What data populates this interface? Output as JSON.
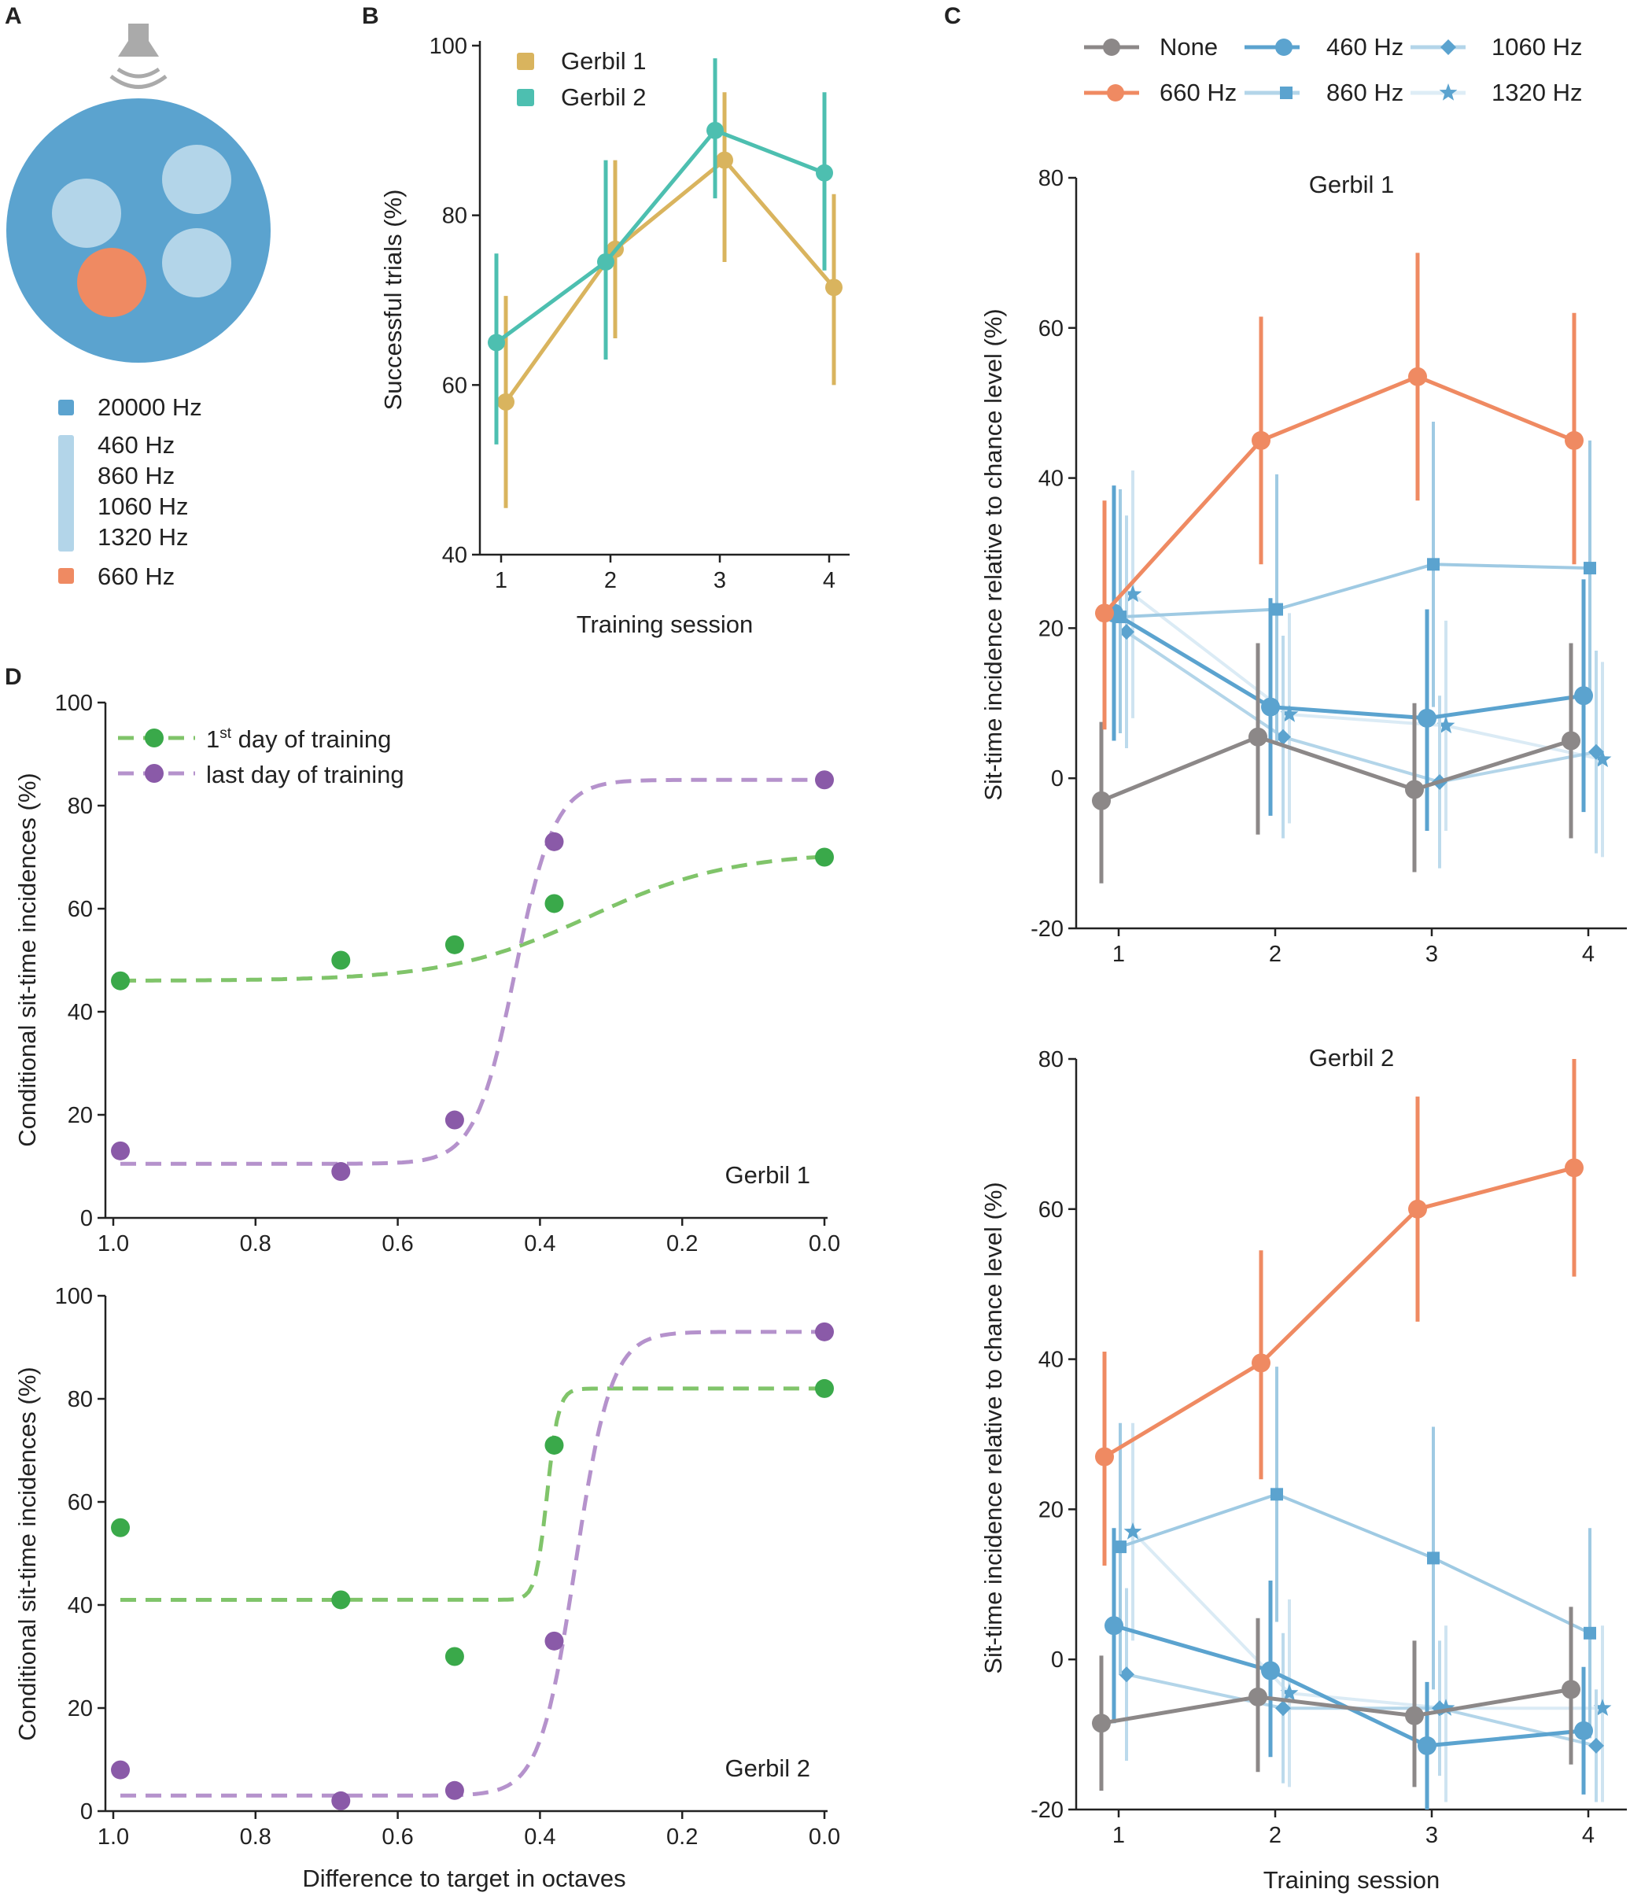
{
  "colors": {
    "blue_dark": "#5ba3cf",
    "blue_light": "#b3d5e9",
    "orange": "#ef8a62",
    "gray": "#8c8888",
    "gold": "#d9b45e",
    "teal": "#4dbfb0",
    "green": "#3aa94a",
    "green_line": "#80c46a",
    "purple": "#8a5aa8",
    "purple_line": "#b592cc",
    "speaker": "#aaaaaa"
  },
  "panel_a": {
    "letter": "A",
    "legend": [
      {
        "label": "20000 Hz",
        "color": "#5ba3cf"
      },
      {
        "labels": [
          "460 Hz",
          "860 Hz",
          "1060 Hz",
          "1320 Hz"
        ],
        "color": "#b3d5e9"
      },
      {
        "label": "660 Hz",
        "color": "#ef8a62"
      }
    ]
  },
  "chart_data": [
    {
      "id": "B",
      "letter": "B",
      "type": "line",
      "xlabel": "Training session",
      "ylabel": "Successful trials (%)",
      "x": [
        1,
        2,
        3,
        4
      ],
      "xticks": [
        "1",
        "2",
        "3",
        "4"
      ],
      "ylim": [
        40,
        100
      ],
      "yticks": [
        40,
        60,
        80,
        100
      ],
      "series": [
        {
          "name": "Gerbil 1",
          "color": "#d9b45e",
          "values": [
            58,
            76,
            86.5,
            71.5
          ],
          "err": [
            [
              45.5,
              70.5
            ],
            [
              65.5,
              86.5
            ],
            [
              74.5,
              94.5
            ],
            [
              60,
              82.5
            ]
          ]
        },
        {
          "name": "Gerbil 2",
          "color": "#4dbfb0",
          "values": [
            65,
            74.5,
            90,
            85
          ],
          "err": [
            [
              53,
              75.5
            ],
            [
              63,
              86.5
            ],
            [
              82,
              98.5
            ],
            [
              73.5,
              94.5
            ]
          ]
        }
      ]
    },
    {
      "id": "C1",
      "letter": "C",
      "type": "line",
      "title": "Gerbil 1",
      "xlabel": "",
      "ylabel": "Sit-time incidence relative to chance level (%)",
      "x": [
        1,
        2,
        3,
        4
      ],
      "xticks": [
        "1",
        "2",
        "3",
        "4"
      ],
      "ylim": [
        -20,
        80
      ],
      "yticks": [
        -20,
        0,
        20,
        40,
        60,
        80
      ],
      "yticklabels": [
        "-20",
        "0",
        "20",
        "40",
        "60",
        "80"
      ],
      "series": [
        {
          "name": "None",
          "key": "none",
          "values": [
            -3,
            5.5,
            -1.5,
            5
          ],
          "err": [
            [
              -14,
              7.5
            ],
            [
              -7.5,
              18
            ],
            [
              -12.5,
              10
            ],
            [
              -8,
              18
            ]
          ]
        },
        {
          "name": "660 Hz",
          "key": "660",
          "values": [
            22,
            45,
            53.5,
            45
          ],
          "err": [
            [
              6.5,
              37
            ],
            [
              28.5,
              61.5
            ],
            [
              37,
              70
            ],
            [
              28.5,
              62
            ]
          ]
        },
        {
          "name": "460 Hz",
          "key": "460",
          "values": [
            22,
            9.5,
            8,
            11
          ],
          "err": [
            [
              5,
              39
            ],
            [
              -5,
              24
            ],
            [
              -7,
              22.5
            ],
            [
              -4.5,
              26.5
            ]
          ]
        },
        {
          "name": "860 Hz",
          "key": "860",
          "values": [
            21.5,
            22.5,
            28.5,
            28
          ],
          "err": [
            [
              6,
              38.5
            ],
            [
              4.5,
              40.5
            ],
            [
              9.5,
              47.5
            ],
            [
              10.5,
              45
            ]
          ]
        },
        {
          "name": "1060 Hz",
          "key": "1060",
          "values": [
            19.5,
            5.5,
            -0.5,
            3.5
          ],
          "err": [
            [
              4,
              35
            ],
            [
              -8,
              19
            ],
            [
              -12,
              11
            ],
            [
              -10,
              17
            ]
          ]
        },
        {
          "name": "1320 Hz",
          "key": "1320",
          "values": [
            24.5,
            8.5,
            7,
            2.5
          ],
          "err": [
            [
              8,
              41
            ],
            [
              -6,
              22
            ],
            [
              -7,
              21
            ],
            [
              -10.5,
              15.5
            ]
          ]
        }
      ]
    },
    {
      "id": "C2",
      "letter": "",
      "type": "line",
      "title": "Gerbil 2",
      "xlabel": "Training session",
      "ylabel": "Sit-time incidence relative to chance level (%)",
      "x": [
        1,
        2,
        3,
        4
      ],
      "xticks": [
        "1",
        "2",
        "3",
        "4"
      ],
      "ylim": [
        -20,
        80
      ],
      "yticks": [
        -20,
        0,
        20,
        40,
        60,
        80
      ],
      "yticklabels": [
        "-20",
        "0",
        "20",
        "40",
        "60",
        "80"
      ],
      "series": [
        {
          "name": "None",
          "key": "none",
          "values": [
            -8.5,
            -5,
            -7.5,
            -4
          ],
          "err": [
            [
              -17.5,
              0.5
            ],
            [
              -15,
              5.5
            ],
            [
              -17,
              2.5
            ],
            [
              -14,
              7
            ]
          ]
        },
        {
          "name": "660 Hz",
          "key": "660",
          "values": [
            27,
            39.5,
            60,
            65.5
          ],
          "err": [
            [
              12.5,
              41
            ],
            [
              24,
              54.5
            ],
            [
              45,
              75
            ],
            [
              51,
              80
            ]
          ]
        },
        {
          "name": "460 Hz",
          "key": "460",
          "values": [
            4.5,
            -1.5,
            -11.5,
            -9.5
          ],
          "err": [
            [
              -8.5,
              17.5
            ],
            [
              -13,
              10.5
            ],
            [
              -20,
              -3
            ],
            [
              -18,
              -1
            ]
          ]
        },
        {
          "name": "860 Hz",
          "key": "860",
          "values": [
            15,
            22,
            13.5,
            3.5
          ],
          "err": [
            [
              -2,
              31.5
            ],
            [
              5,
              39
            ],
            [
              -4,
              31
            ],
            [
              -10.5,
              17.5
            ]
          ]
        },
        {
          "name": "1060 Hz",
          "key": "1060",
          "values": [
            -2,
            -6.5,
            -6.5,
            -11.5
          ],
          "err": [
            [
              -13.5,
              9.5
            ],
            [
              -16.5,
              3.5
            ],
            [
              -15.5,
              2.5
            ],
            [
              -19,
              -4
            ]
          ]
        },
        {
          "name": "1320 Hz",
          "key": "1320",
          "values": [
            17,
            -4.5,
            -6.5,
            -6.5
          ],
          "err": [
            [
              2.5,
              31.5
            ],
            [
              -17,
              8
            ],
            [
              -19,
              4.5
            ],
            [
              -19,
              4.5
            ]
          ]
        }
      ]
    },
    {
      "id": "D1",
      "letter": "D",
      "type": "scatter",
      "title": "Gerbil 1",
      "xlabel": "",
      "ylabel": "Conditional sit-time incidences (%)",
      "xlim": [
        1.0,
        0.0
      ],
      "xticks": [
        1.0,
        0.8,
        0.6,
        0.4,
        0.2,
        0.0
      ],
      "xticklabels": [
        "1.0",
        "0.8",
        "0.6",
        "0.4",
        "0.2",
        "0.0"
      ],
      "ylim": [
        0,
        100
      ],
      "yticks": [
        0,
        20,
        40,
        60,
        80,
        100
      ],
      "series": [
        {
          "name": "1st day of training",
          "key": "first",
          "x": [
            0.99,
            0.68,
            0.52,
            0.38,
            0.0
          ],
          "y": [
            46,
            50,
            53,
            61,
            70
          ],
          "fit": {
            "lower": 46,
            "upper": 71,
            "mid": 0.33,
            "width": 0.1
          }
        },
        {
          "name": "last day of training",
          "key": "last",
          "x": [
            0.99,
            0.68,
            0.52,
            0.38,
            0.0
          ],
          "y": [
            13,
            9,
            19,
            73,
            85
          ],
          "fit": {
            "lower": 10.5,
            "upper": 85,
            "mid": 0.435,
            "width": 0.028
          }
        }
      ]
    },
    {
      "id": "D2",
      "letter": "",
      "type": "scatter",
      "title": "Gerbil 2",
      "xlabel": "Difference to target in octaves",
      "ylabel": "Conditional sit-time incidences (%)",
      "xlim": [
        1.0,
        0.0
      ],
      "xticks": [
        1.0,
        0.8,
        0.6,
        0.4,
        0.2,
        0.0
      ],
      "xticklabels": [
        "1.0",
        "0.8",
        "0.6",
        "0.4",
        "0.2",
        "0.0"
      ],
      "ylim": [
        0,
        100
      ],
      "yticks": [
        0,
        20,
        40,
        60,
        80,
        100
      ],
      "series": [
        {
          "name": "1st day of training",
          "key": "first",
          "x": [
            0.99,
            0.68,
            0.52,
            0.38,
            0.0
          ],
          "y": [
            55,
            41,
            30,
            71,
            82
          ],
          "fit": {
            "lower": 41,
            "upper": 82,
            "mid": 0.39,
            "width": 0.008
          }
        },
        {
          "name": "last day of training",
          "key": "last",
          "x": [
            0.99,
            0.68,
            0.52,
            0.38,
            0.0
          ],
          "y": [
            8,
            2,
            4,
            33,
            93
          ],
          "fit": {
            "lower": 3,
            "upper": 93,
            "mid": 0.35,
            "width": 0.025
          }
        }
      ]
    }
  ],
  "legend_c": [
    {
      "name": "None",
      "key": "none"
    },
    {
      "name": "460 Hz",
      "key": "460"
    },
    {
      "name": "1060 Hz",
      "key": "1060"
    },
    {
      "name": "660 Hz",
      "key": "660"
    },
    {
      "name": "860 Hz",
      "key": "860"
    },
    {
      "name": "1320 Hz",
      "key": "1320"
    }
  ],
  "legend_d": {
    "first_prefix": "1",
    "first_sup": "st",
    "first_suffix": " day of training",
    "last": "last day of training"
  }
}
